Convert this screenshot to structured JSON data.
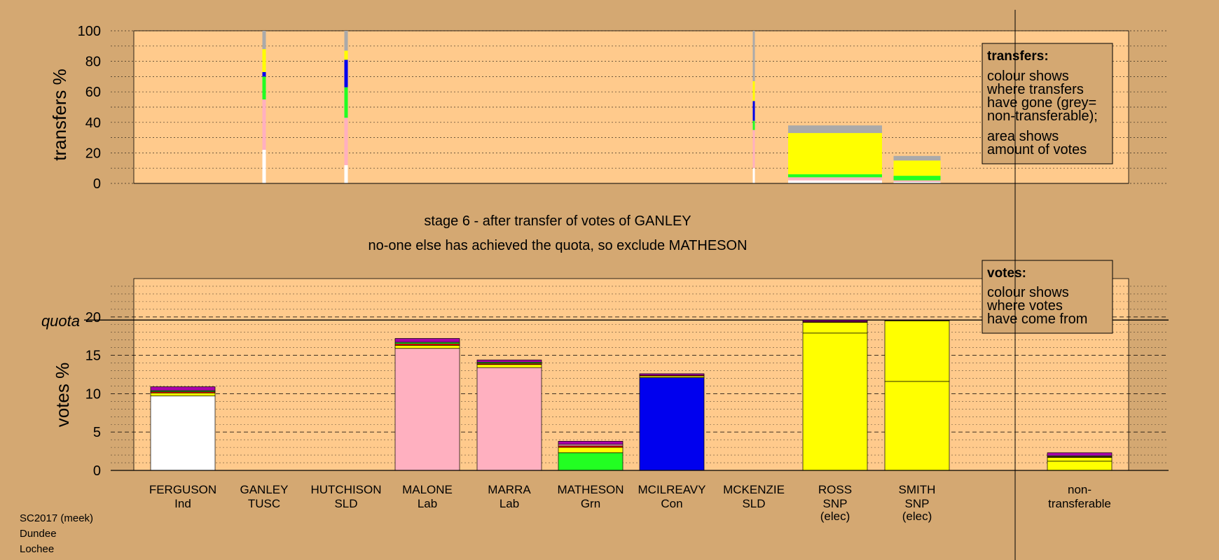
{
  "colors": {
    "background": "#d4a872",
    "plot_background": "#ffca8c",
    "Ind": "#ffffff",
    "Lab": "#ffb0c0",
    "Grn": "#22ff22",
    "Con": "#0000ee",
    "SNP": "#ffff00",
    "SLD": "#aa00aa",
    "TUSC": "#ff0000",
    "nontransferable": "#aaaaaa"
  },
  "stage_title": "stage 6 - after transfer of votes of GANLEY",
  "stage_subtitle": "no-one else has achieved the quota, so exclude MATHESON",
  "footer": [
    "SC2017 (meek)",
    "Dundee",
    "Lochee"
  ],
  "legends": {
    "transfers": {
      "heading": "transfers:",
      "lines": [
        "colour shows",
        "where transfers",
        "have gone (grey=",
        "non-transferable);",
        "area shows",
        "amount of votes"
      ]
    },
    "votes": {
      "heading": "votes:",
      "lines": [
        "colour shows",
        "where votes",
        "have come from"
      ]
    }
  },
  "candidates": [
    {
      "name": "FERGUSON",
      "party": "Ind"
    },
    {
      "name": "GANLEY",
      "party": "TUSC"
    },
    {
      "name": "HUTCHISON",
      "party": "SLD"
    },
    {
      "name": "MALONE",
      "party": "Lab"
    },
    {
      "name": "MARRA",
      "party": "Lab"
    },
    {
      "name": "MATHESON",
      "party": "Grn"
    },
    {
      "name": "MCILREAVY",
      "party": "Con"
    },
    {
      "name": "MCKENZIE",
      "party": "SLD"
    },
    {
      "name": "ROSS",
      "party": "SNP",
      "note": "(elec)"
    },
    {
      "name": "SMITH",
      "party": "SNP",
      "note": "(elec)"
    },
    {
      "name": "non-",
      "party": "transferable"
    }
  ],
  "chart_data": [
    {
      "type": "bar",
      "stacked": true,
      "ylabel": "transfers %",
      "ylim": [
        0,
        100
      ],
      "yticks": [
        0,
        20,
        40,
        60,
        80,
        100
      ],
      "grid": "dotted every 10",
      "categories": [
        "FERGUSON",
        "GANLEY",
        "HUTCHISON",
        "MALONE",
        "MARRA",
        "MATHESON",
        "MCILREAVY",
        "MCKENZIE",
        "ROSS",
        "SMITH"
      ],
      "note": "transfer bars width proportional to amount of votes transferred",
      "bars": [
        {
          "category": "GANLEY",
          "width_weight": 0.04,
          "segments": [
            {
              "party": "Ind",
              "value": 22
            },
            {
              "party": "Lab",
              "value": 33
            },
            {
              "party": "Grn",
              "value": 15
            },
            {
              "party": "Con",
              "value": 3
            },
            {
              "party": "SNP",
              "value": 15
            },
            {
              "party": "nontransferable",
              "value": 12
            }
          ]
        },
        {
          "category": "HUTCHISON",
          "width_weight": 0.04,
          "segments": [
            {
              "party": "Ind",
              "value": 12
            },
            {
              "party": "Lab",
              "value": 31
            },
            {
              "party": "Grn",
              "value": 20
            },
            {
              "party": "Con",
              "value": 18
            },
            {
              "party": "SNP",
              "value": 6
            },
            {
              "party": "nontransferable",
              "value": 13
            }
          ]
        },
        {
          "category": "MCKENZIE",
          "width_weight": 0.02,
          "segments": [
            {
              "party": "Ind",
              "value": 10
            },
            {
              "party": "Lab",
              "value": 25
            },
            {
              "party": "Grn",
              "value": 6
            },
            {
              "party": "Con",
              "value": 13
            },
            {
              "party": "SNP",
              "value": 13
            },
            {
              "party": "nontransferable",
              "value": 33
            }
          ]
        },
        {
          "category": "ROSS",
          "width_weight": 1.0,
          "segments": [
            {
              "party": "Ind",
              "value": 2
            },
            {
              "party": "Lab",
              "value": 2
            },
            {
              "party": "Grn",
              "value": 2
            },
            {
              "party": "SNP",
              "value": 27
            },
            {
              "party": "nontransferable",
              "value": 5
            }
          ]
        },
        {
          "category": "SMITH",
          "width_weight": 0.5,
          "segments": [
            {
              "party": "Ind",
              "value": 1
            },
            {
              "party": "Lab",
              "value": 1
            },
            {
              "party": "Grn",
              "value": 3
            },
            {
              "party": "SNP",
              "value": 10
            },
            {
              "party": "nontransferable",
              "value": 3
            }
          ]
        }
      ]
    },
    {
      "type": "bar",
      "stacked": true,
      "ylabel": "votes %",
      "ylim": [
        0,
        25
      ],
      "yticks": [
        0,
        5,
        10,
        15,
        20
      ],
      "quota": 19.6,
      "quota_label": "quota",
      "categories": [
        "FERGUSON",
        "GANLEY",
        "HUTCHISON",
        "MALONE",
        "MARRA",
        "MATHESON",
        "MCILREAVY",
        "MCKENZIE",
        "ROSS",
        "SMITH",
        "non-transferable"
      ],
      "bars": [
        {
          "category": "FERGUSON",
          "segments": [
            {
              "party": "Ind",
              "value": 9.7
            },
            {
              "party": "SNP",
              "value": 0.4
            },
            {
              "party": "TUSC",
              "value": 0.15
            },
            {
              "party": "Grn",
              "value": 0.15
            },
            {
              "party": "SLD",
              "value": 0.5
            }
          ]
        },
        {
          "category": "MALONE",
          "segments": [
            {
              "party": "Lab",
              "value": 15.9
            },
            {
              "party": "SNP",
              "value": 0.4
            },
            {
              "party": "TUSC",
              "value": 0.2
            },
            {
              "party": "Grn",
              "value": 0.2
            },
            {
              "party": "SLD",
              "value": 0.5
            }
          ]
        },
        {
          "category": "MARRA",
          "segments": [
            {
              "party": "Lab",
              "value": 13.4
            },
            {
              "party": "SNP",
              "value": 0.4
            },
            {
              "party": "TUSC",
              "value": 0.15
            },
            {
              "party": "Grn",
              "value": 0.15
            },
            {
              "party": "SLD",
              "value": 0.3
            }
          ]
        },
        {
          "category": "MATHESON",
          "segments": [
            {
              "party": "Grn",
              "value": 2.3
            },
            {
              "party": "SNP",
              "value": 0.7
            },
            {
              "party": "TUSC",
              "value": 0.2
            },
            {
              "party": "Lab",
              "value": 0.2
            },
            {
              "party": "SLD",
              "value": 0.4
            }
          ]
        },
        {
          "category": "MCILREAVY",
          "segments": [
            {
              "party": "Con",
              "value": 12.1
            },
            {
              "party": "SNP",
              "value": 0.2
            },
            {
              "party": "TUSC",
              "value": 0.1
            },
            {
              "party": "SLD",
              "value": 0.2
            }
          ]
        },
        {
          "category": "ROSS",
          "segments": [
            {
              "party": "SNP",
              "value": 17.9
            },
            {
              "party": "SNP",
              "value": 1.4
            },
            {
              "party": "TUSC",
              "value": 0.1
            },
            {
              "party": "SLD",
              "value": 0.2
            }
          ]
        },
        {
          "category": "SMITH",
          "segments": [
            {
              "party": "SNP",
              "value": 11.6
            },
            {
              "party": "SNP",
              "value": 7.9
            },
            {
              "party": "SLD",
              "value": 0.1
            }
          ]
        },
        {
          "category": "non-transferable",
          "segments": [
            {
              "party": "SNP",
              "value": 1.2
            },
            {
              "party": "SNP",
              "value": 0.5
            },
            {
              "party": "TUSC",
              "value": 0.1
            },
            {
              "party": "Grn",
              "value": 0.1
            },
            {
              "party": "SLD",
              "value": 0.4
            }
          ]
        }
      ]
    }
  ]
}
